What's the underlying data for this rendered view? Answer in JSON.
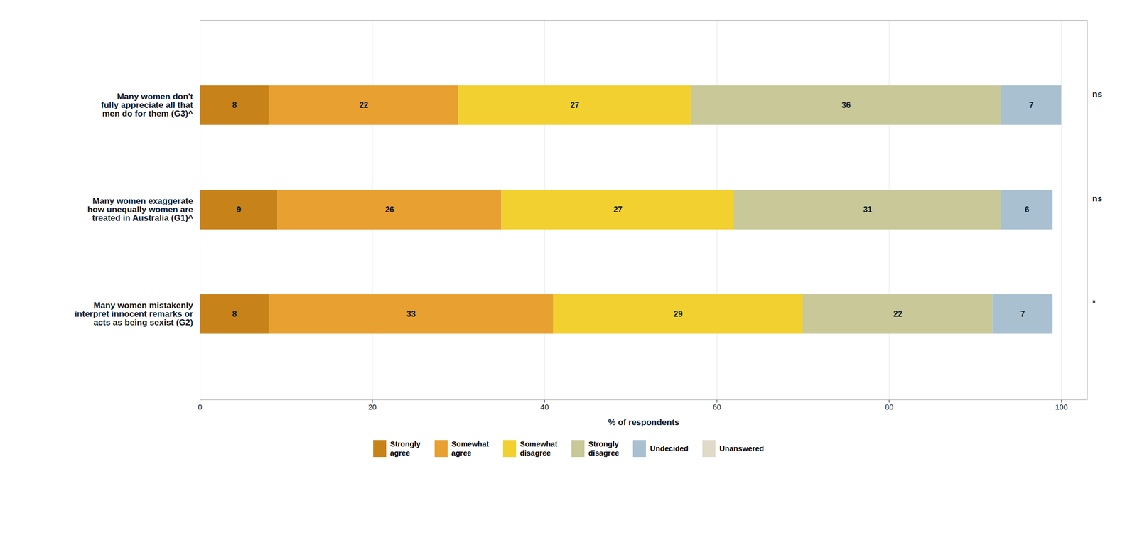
{
  "chart_data": {
    "type": "bar",
    "orientation": "horizontal",
    "stacked": true,
    "categories": [
      "Many women don't\nfully appreciate all that\nmen do for them (G3)^",
      "Many women exaggerate\nhow unequally women are\ntreated in Australia (G1)^",
      "Many women mistakenly\ninterpret innocent remarks or\nacts as being sexist (G2)"
    ],
    "series": [
      {
        "name": "Strongly\nagree",
        "color": "#C8821A",
        "values": [
          8,
          9,
          8
        ]
      },
      {
        "name": "Somewhat\nagree",
        "color": "#E8A030",
        "values": [
          22,
          26,
          33
        ]
      },
      {
        "name": "Somewhat\ndisagree",
        "color": "#F2D030",
        "values": [
          27,
          27,
          29
        ]
      },
      {
        "name": "Strongly\ndisagree",
        "color": "#C8C898",
        "values": [
          36,
          31,
          22
        ]
      },
      {
        "name": "Undecided",
        "color": "#A8C0D0",
        "values": [
          7,
          6,
          7
        ]
      },
      {
        "name": "Unanswered",
        "color": "#E0DAC8",
        "values": [
          0,
          0,
          0
        ]
      }
    ],
    "annotations": [
      "ns",
      "ns",
      "*"
    ],
    "xlabel": "% of respondents",
    "xlim": [
      0,
      103
    ],
    "xticks": [
      0,
      20,
      40,
      60,
      80,
      100
    ],
    "grid": true,
    "data_labels": true,
    "legend": "bottom"
  }
}
